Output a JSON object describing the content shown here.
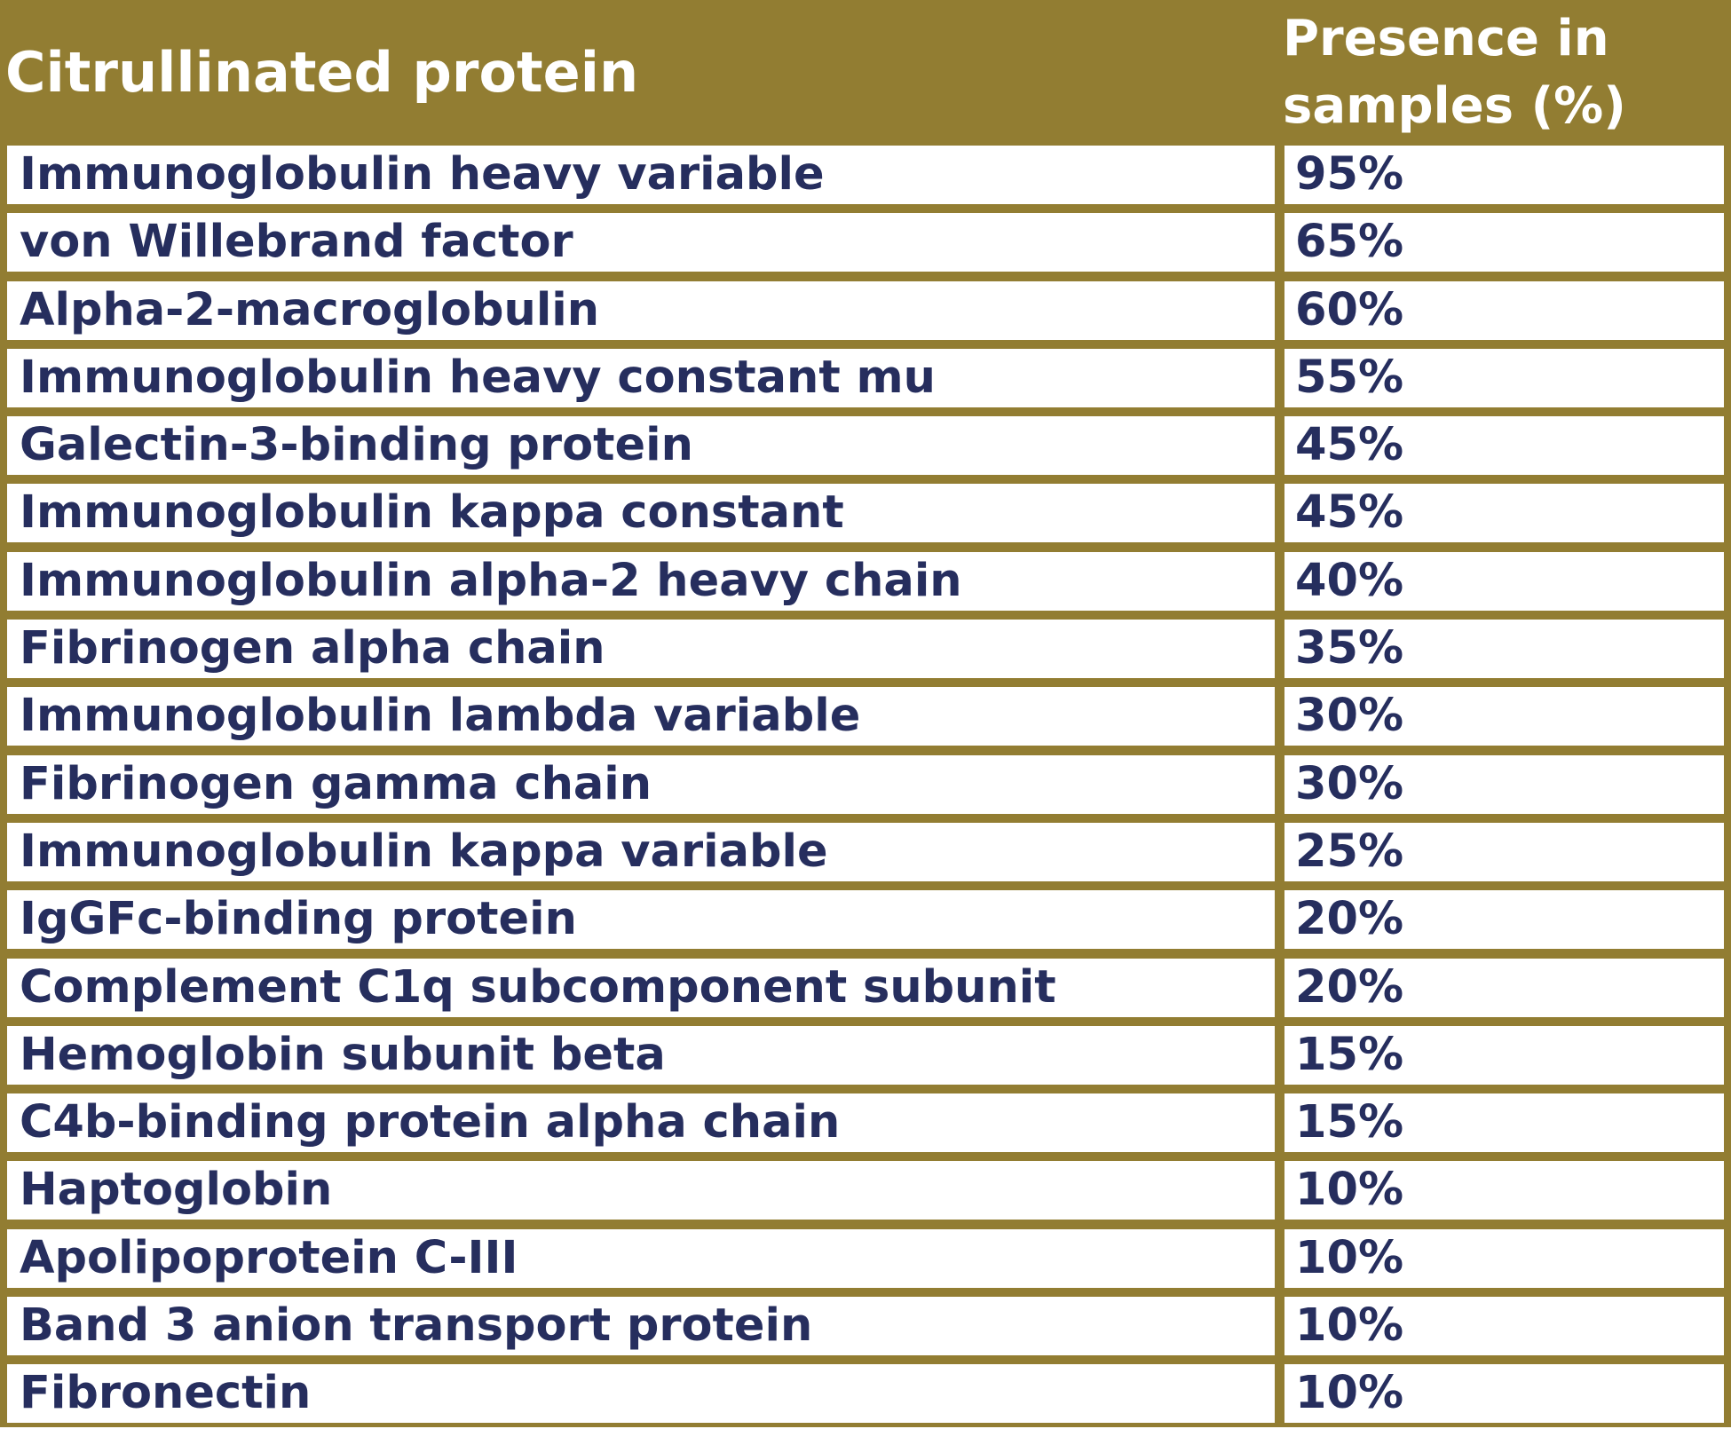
{
  "table": {
    "header": {
      "protein": "Citrullinated protein",
      "presence": "Presence in samples (%)"
    },
    "rows": [
      {
        "protein": "Immunoglobulin heavy variable",
        "presence": "95%"
      },
      {
        "protein": "von Willebrand factor",
        "presence": "65%"
      },
      {
        "protein": "Alpha-2-macroglobulin",
        "presence": "60%"
      },
      {
        "protein": "Immunoglobulin heavy constant mu",
        "presence": "55%"
      },
      {
        "protein": "Galectin-3-binding protein",
        "presence": "45%"
      },
      {
        "protein": "Immunoglobulin kappa constant",
        "presence": "45%"
      },
      {
        "protein": "Immunoglobulin alpha-2 heavy chain",
        "presence": "40%"
      },
      {
        "protein": "Fibrinogen alpha chain",
        "presence": "35%"
      },
      {
        "protein": "Immunoglobulin lambda variable",
        "presence": "30%"
      },
      {
        "protein": "Fibrinogen gamma chain",
        "presence": "30%"
      },
      {
        "protein": "Immunoglobulin kappa variable",
        "presence": "25%"
      },
      {
        "protein": "IgGFc-binding protein",
        "presence": "20%"
      },
      {
        "protein": "Complement C1q subcomponent subunit",
        "presence": "20%"
      },
      {
        "protein": "Hemoglobin subunit beta",
        "presence": "15%"
      },
      {
        "protein": "C4b-binding protein alpha chain",
        "presence": "15%"
      },
      {
        "protein": "Haptoglobin",
        "presence": "10%"
      },
      {
        "protein": "Apolipoprotein C-III",
        "presence": "10%"
      },
      {
        "protein": "Band 3 anion transport protein",
        "presence": "10%"
      },
      {
        "protein": "Fibronectin",
        "presence": "10%"
      }
    ]
  },
  "colors": {
    "header_background": "#927d32",
    "header_text": "#ffffff",
    "cell_text": "#262e5e",
    "cell_background": "#ffffff"
  }
}
